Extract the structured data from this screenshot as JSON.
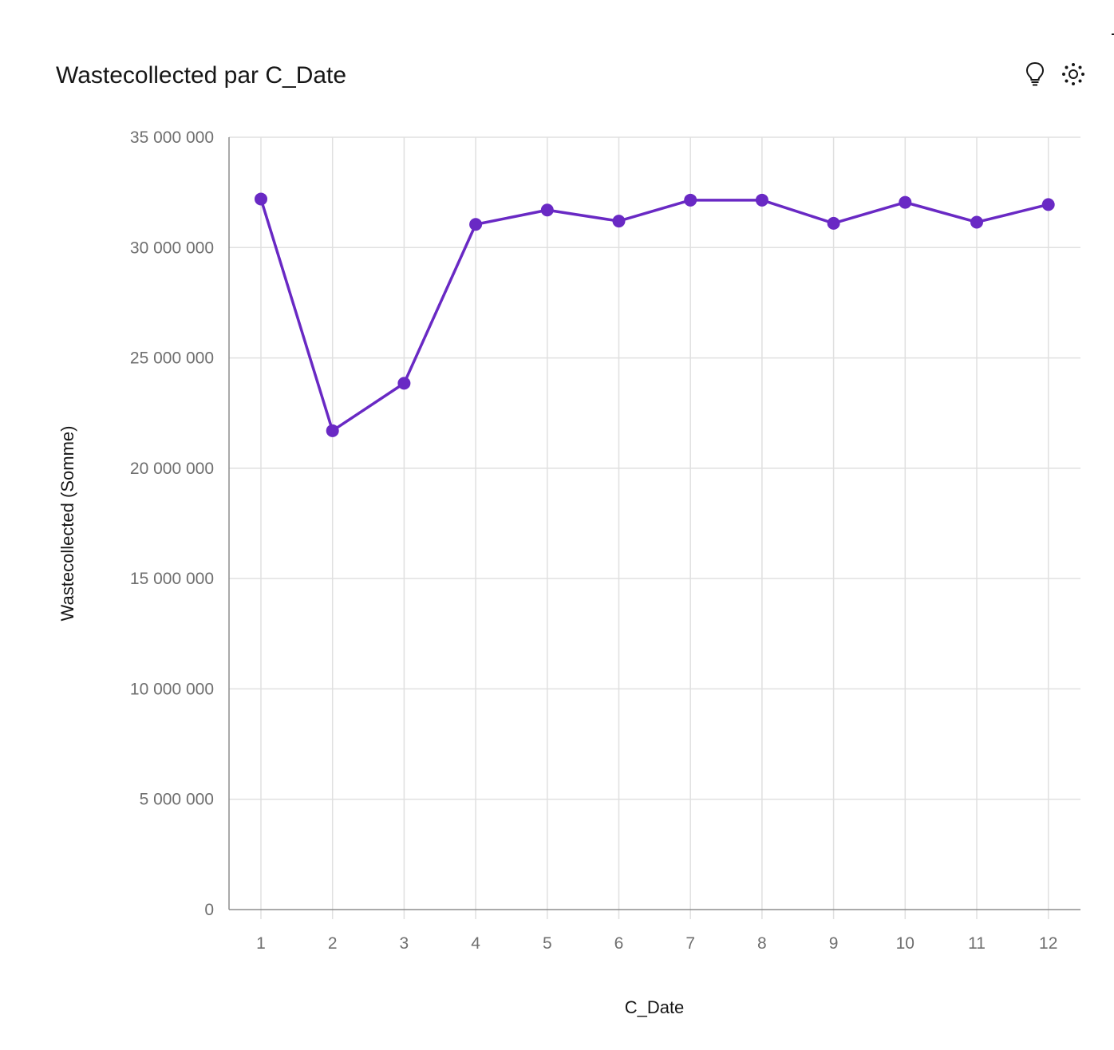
{
  "header": {
    "title": "Wastecollected par C_Date"
  },
  "toolbar": {
    "insights_icon": "lightbulb-icon",
    "ai_icon": "sparkle-settings-icon"
  },
  "colors": {
    "series": "#6929c4",
    "grid": "#e0e0e0",
    "axis": "#8d8d8d",
    "tick_text": "#6f6f6f",
    "title": "#161616"
  },
  "chart_data": {
    "type": "line",
    "title": "Wastecollected par C_Date",
    "xlabel": "C_Date",
    "ylabel": "Wastecollected (Somme)",
    "x": [
      "1",
      "2",
      "3",
      "4",
      "5",
      "6",
      "7",
      "8",
      "9",
      "10",
      "11",
      "12"
    ],
    "series": [
      {
        "values": [
          32200000,
          21700000,
          23850000,
          31050000,
          31700000,
          31200000,
          32150000,
          32150000,
          31100000,
          32050000,
          31150000,
          31950000
        ]
      }
    ],
    "ylim": [
      0,
      35000000
    ],
    "yticks": [
      0,
      5000000,
      10000000,
      15000000,
      20000000,
      25000000,
      30000000,
      35000000
    ],
    "ytick_labels": [
      "0",
      "5 000 000",
      "10 000 000",
      "15 000 000",
      "20 000 000",
      "25 000 000",
      "30 000 000",
      "35 000 000"
    ],
    "grid": true,
    "legend": "none",
    "markers": true
  }
}
